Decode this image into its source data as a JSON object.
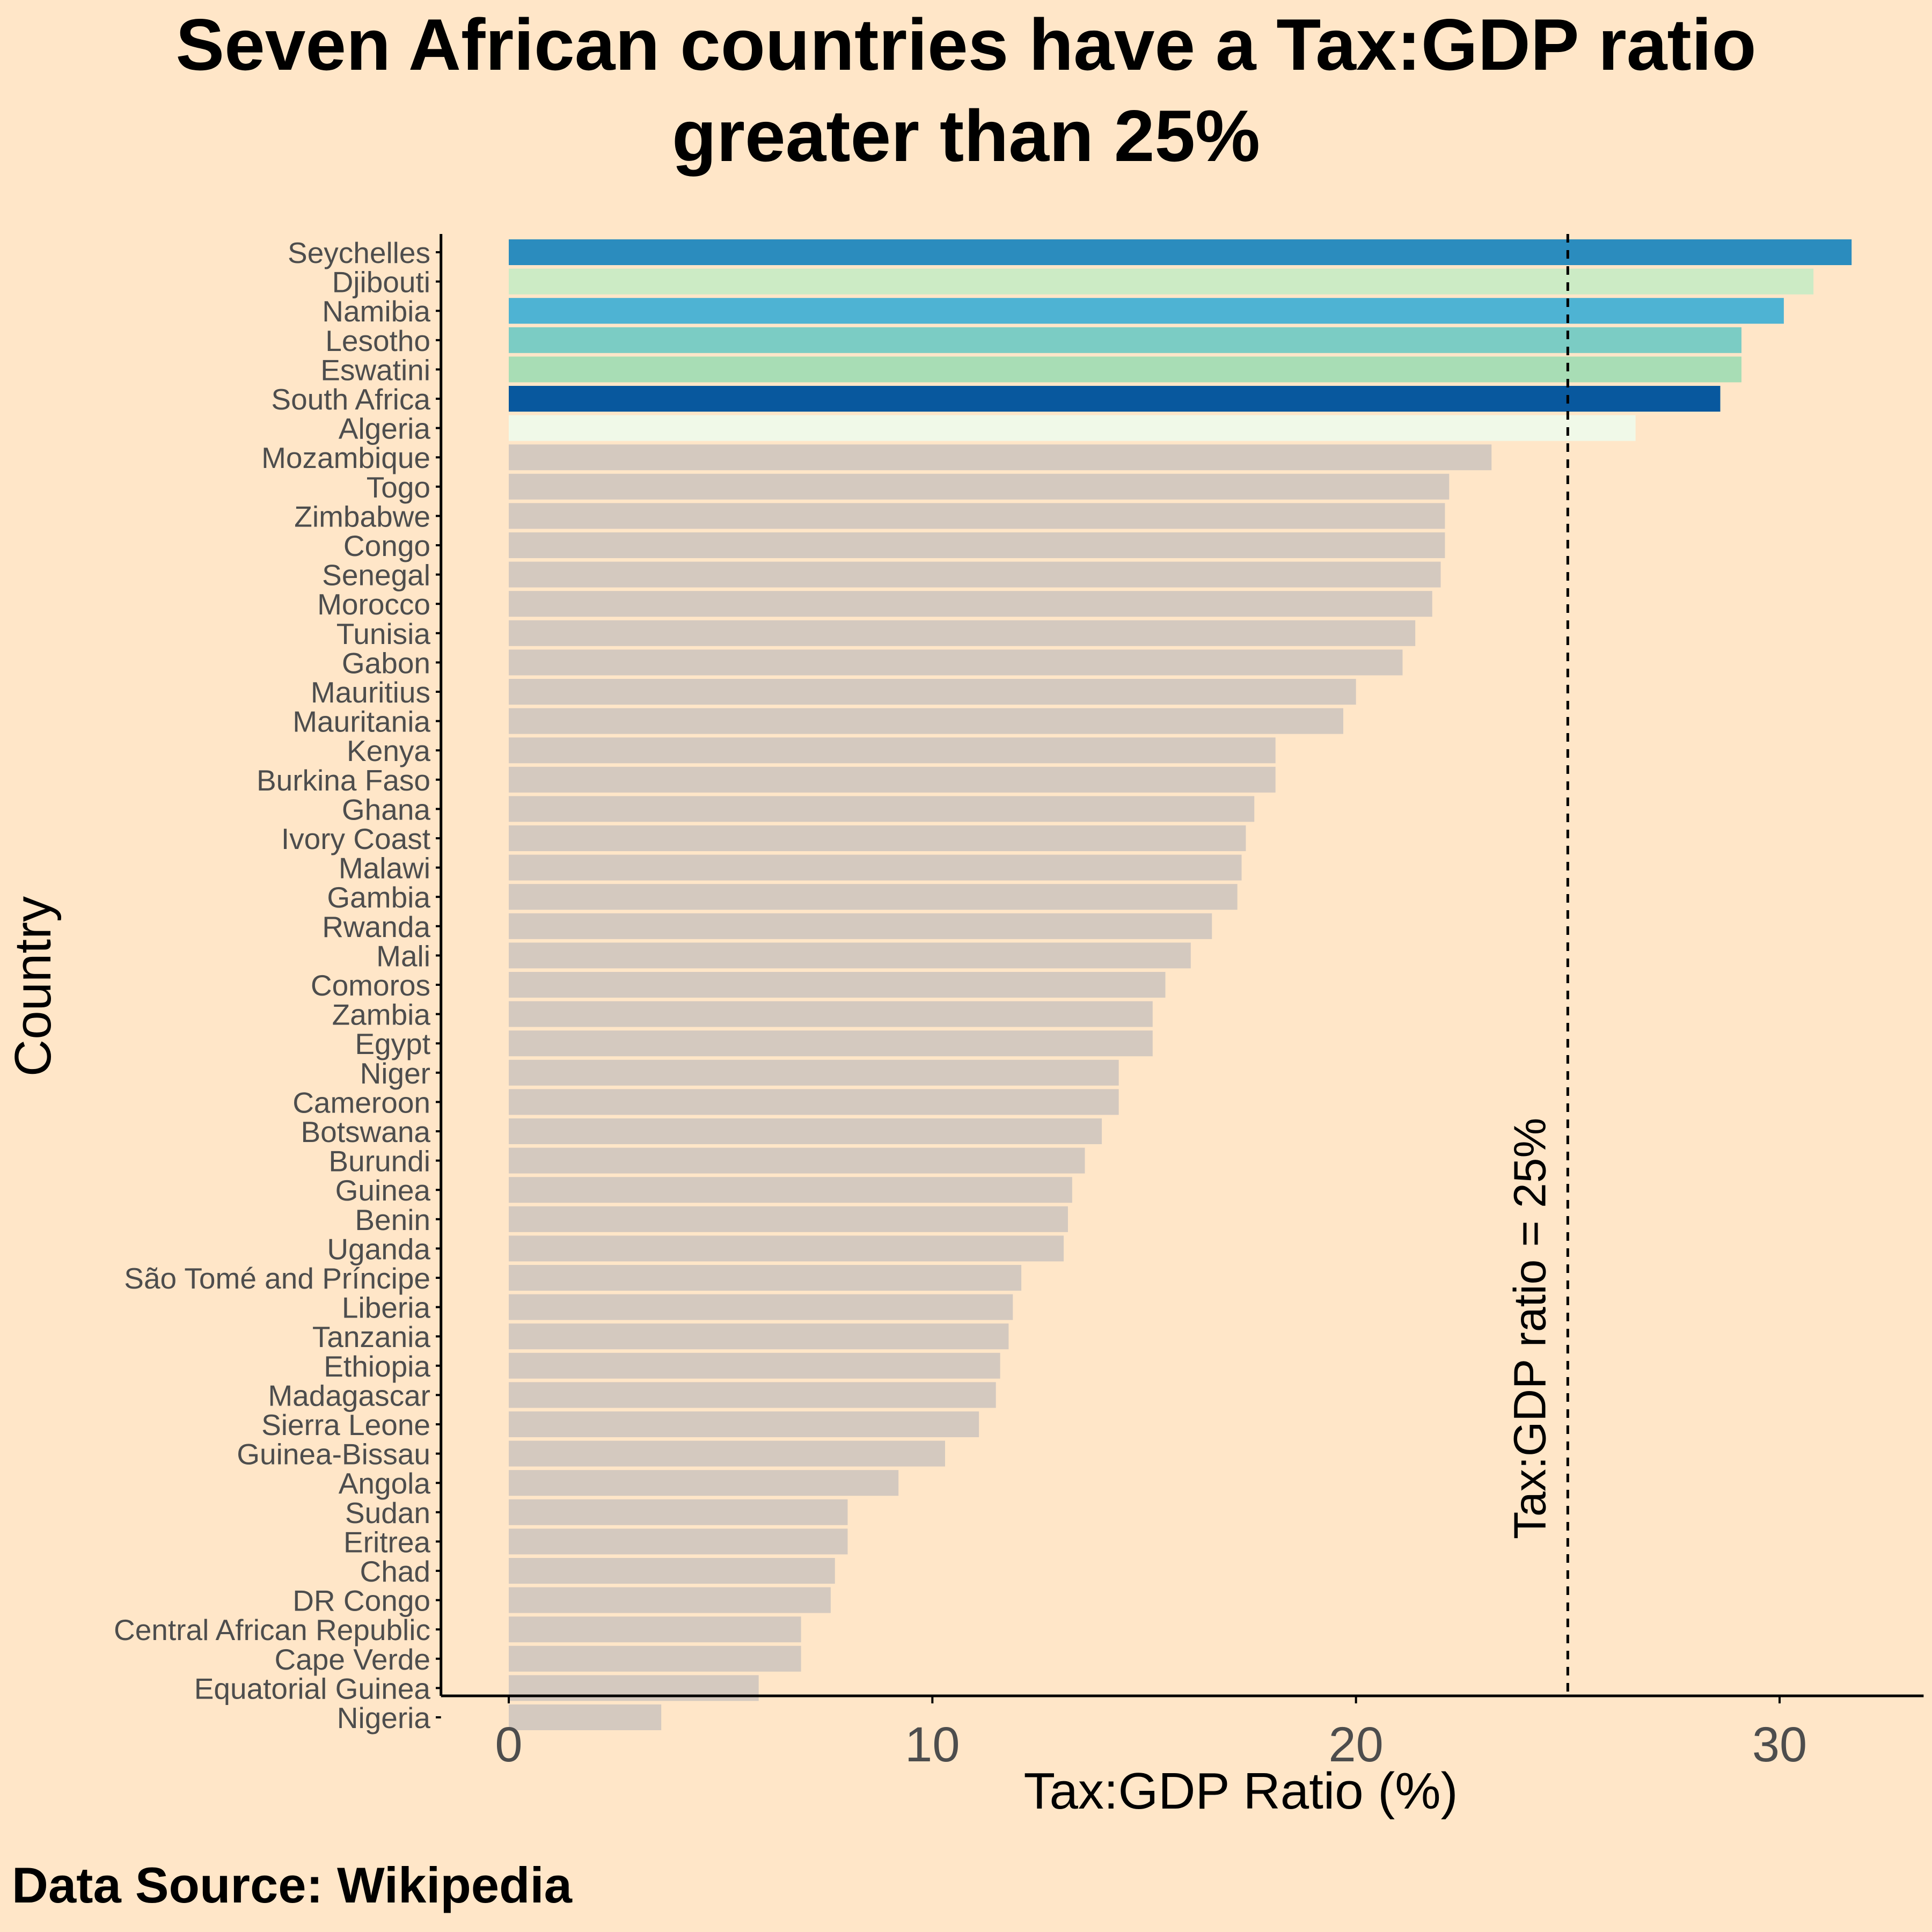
{
  "chart_data": {
    "type": "bar",
    "orientation": "horizontal",
    "title_lines": [
      "Seven African countries have a Tax:GDP ratio",
      "greater than 25%"
    ],
    "xlabel": "Tax:GDP Ratio (%)",
    "ylabel": "Country",
    "xlim": [
      -1.6,
      33.4
    ],
    "xticks": [
      0,
      10,
      20,
      30
    ],
    "xtick_labels": [
      "0",
      "10",
      "20",
      "30"
    ],
    "grid": false,
    "reference_line": {
      "x": 25,
      "style": "dashed",
      "label": "Tax:GDP ratio = 25%"
    },
    "source": "Data Source: Wikipedia",
    "default_color": "#D4C9BF",
    "categories": [
      "Seychelles",
      "Djibouti",
      "Namibia",
      "Lesotho",
      "Eswatini",
      "South Africa",
      "Algeria",
      "Mozambique",
      "Togo",
      "Zimbabwe",
      "Congo",
      "Senegal",
      "Morocco",
      "Tunisia",
      "Gabon",
      "Mauritius",
      "Mauritania",
      "Kenya",
      "Burkina Faso",
      "Ghana",
      "Ivory Coast",
      "Malawi",
      "Gambia",
      "Rwanda",
      "Mali",
      "Comoros",
      "Zambia",
      "Egypt",
      "Niger",
      "Cameroon",
      "Botswana",
      "Burundi",
      "Guinea",
      "Benin",
      "Uganda",
      "São Tomé and Príncipe",
      "Liberia",
      "Tanzania",
      "Ethiopia",
      "Madagascar",
      "Sierra Leone",
      "Guinea-Bissau",
      "Angola",
      "Sudan",
      "Eritrea",
      "Chad",
      "DR Congo",
      "Central African Republic",
      "Cape Verde",
      "Equatorial Guinea",
      "Nigeria"
    ],
    "values": [
      31.7,
      30.8,
      30.1,
      29.1,
      29.1,
      28.6,
      26.6,
      23.2,
      22.2,
      22.1,
      22.1,
      22.0,
      21.8,
      21.4,
      21.1,
      20.0,
      19.7,
      18.1,
      18.1,
      17.6,
      17.4,
      17.3,
      17.2,
      16.6,
      16.1,
      15.5,
      15.2,
      15.2,
      14.4,
      14.4,
      14.0,
      13.6,
      13.3,
      13.2,
      13.1,
      12.1,
      11.9,
      11.8,
      11.6,
      11.5,
      11.1,
      10.3,
      9.2,
      8.0,
      8.0,
      7.7,
      7.6,
      6.9,
      6.9,
      5.9,
      3.6
    ],
    "highlight_colors": {
      "Seychelles": "#2B8CBE",
      "Djibouti": "#CCEBC5",
      "Namibia": "#4EB3D3",
      "Lesotho": "#7BCCC4",
      "Eswatini": "#A8DDB5",
      "South Africa": "#08589E",
      "Algeria": "#F0F9E8"
    }
  }
}
